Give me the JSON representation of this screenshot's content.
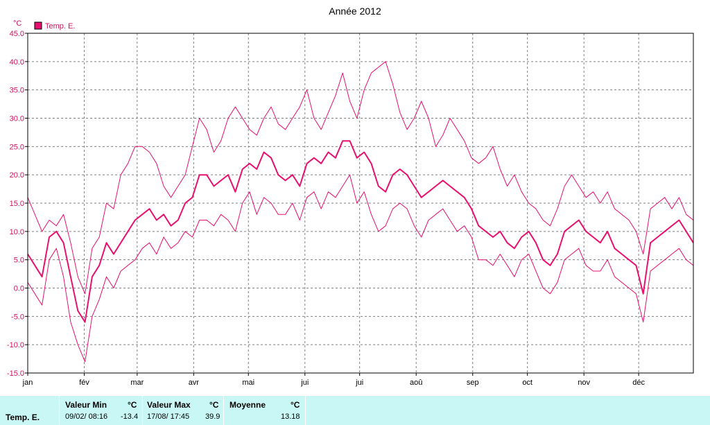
{
  "title": "Année 2012",
  "unit": "°C",
  "legend": {
    "label": "Temp. E.",
    "color": "#e8106f"
  },
  "colors": {
    "series": "#e8106f",
    "grid": "#808080",
    "stats_bg": "#c9f7f5"
  },
  "chart_data": {
    "type": "line",
    "title": "Année 2012",
    "ylabel": "°C",
    "ylim": [
      -15,
      45
    ],
    "y_ticks": [
      "-15.0",
      "-10.0",
      "-5.0",
      "0.0",
      "5.0",
      "10.0",
      "15.0",
      "20.0",
      "25.0",
      "30.0",
      "35.0",
      "40.0",
      "45.0"
    ],
    "xlim": [
      1,
      366
    ],
    "x_ticks": [
      {
        "label": "jan",
        "day": 1
      },
      {
        "label": "fév",
        "day": 32
      },
      {
        "label": "mar",
        "day": 61
      },
      {
        "label": "avr",
        "day": 92
      },
      {
        "label": "mai",
        "day": 122
      },
      {
        "label": "jui",
        "day": 153
      },
      {
        "label": "jui",
        "day": 183
      },
      {
        "label": "aoû",
        "day": 214
      },
      {
        "label": "sep",
        "day": 245
      },
      {
        "label": "oct",
        "day": 275
      },
      {
        "label": "nov",
        "day": 306
      },
      {
        "label": "déc",
        "day": 336
      }
    ],
    "grid": true,
    "legend_position": "top-left",
    "series_name": "Temp. E.",
    "weekly_mean": [
      6,
      4,
      2,
      9,
      10,
      8,
      2,
      -4,
      -6,
      2,
      4,
      8,
      6,
      8,
      10,
      12,
      13,
      14,
      12,
      13,
      11,
      12,
      15,
      16,
      20,
      20,
      18,
      19,
      20,
      17,
      21,
      22,
      21,
      24,
      23,
      20,
      19,
      20,
      18,
      22,
      23,
      22,
      24,
      23,
      26,
      26,
      23,
      24,
      22,
      18,
      17,
      20,
      21,
      20,
      18,
      16,
      17,
      18,
      19,
      18,
      17,
      16,
      14,
      11,
      10,
      9,
      10,
      8,
      7,
      9,
      10,
      8,
      5,
      4,
      6,
      10,
      11,
      12,
      10,
      9,
      8,
      10,
      7,
      6,
      5,
      4,
      -1,
      8,
      9,
      10,
      11,
      12,
      10,
      8
    ],
    "weekly_max": [
      16,
      13,
      10,
      12,
      11,
      13,
      8,
      2,
      -1,
      7,
      9,
      15,
      14,
      20,
      22,
      25,
      25,
      24,
      22,
      18,
      16,
      18,
      20,
      25,
      30,
      28,
      24,
      26,
      30,
      32,
      30,
      28,
      27,
      30,
      32,
      29,
      28,
      30,
      32,
      35,
      30,
      28,
      31,
      34,
      38,
      33,
      30,
      35,
      38,
      39,
      40,
      36,
      31,
      28,
      30,
      33,
      30,
      25,
      27,
      30,
      28,
      26,
      23,
      22,
      23,
      25,
      21,
      18,
      20,
      17,
      15,
      14,
      12,
      11,
      14,
      18,
      20,
      18,
      16,
      17,
      15,
      17,
      14,
      13,
      12,
      10,
      6,
      14,
      15,
      16,
      14,
      16,
      13,
      12
    ],
    "weekly_min": [
      1,
      -1,
      -3,
      5,
      7,
      2,
      -6,
      -10,
      -13,
      -5,
      -2,
      2,
      0,
      3,
      4,
      5,
      7,
      8,
      6,
      9,
      7,
      8,
      10,
      9,
      12,
      12,
      11,
      13,
      12,
      10,
      15,
      17,
      13,
      16,
      15,
      13,
      13,
      15,
      12,
      16,
      17,
      14,
      17,
      16,
      18,
      20,
      15,
      17,
      13,
      10,
      11,
      14,
      15,
      14,
      11,
      9,
      12,
      13,
      14,
      12,
      10,
      11,
      9,
      5,
      5,
      4,
      6,
      4,
      2,
      5,
      6,
      3,
      0,
      -1,
      1,
      5,
      6,
      7,
      4,
      3,
      3,
      5,
      2,
      1,
      0,
      -1,
      -6,
      3,
      4,
      5,
      6,
      7,
      5,
      4
    ],
    "min_value": -13.4,
    "max_value": 39.9,
    "mean_value": 13.18
  },
  "stats": {
    "row_label": "Temp. E.",
    "min": {
      "header": "Valeur Min",
      "unit": "°C",
      "when": "09/02/  08:16",
      "value": "-13.4"
    },
    "max": {
      "header": "Valeur Max",
      "unit": "°C",
      "when": "17/08/  17:45",
      "value": "39.9"
    },
    "mean": {
      "header": "Moyenne",
      "unit": "°C",
      "value": "13.18"
    }
  }
}
